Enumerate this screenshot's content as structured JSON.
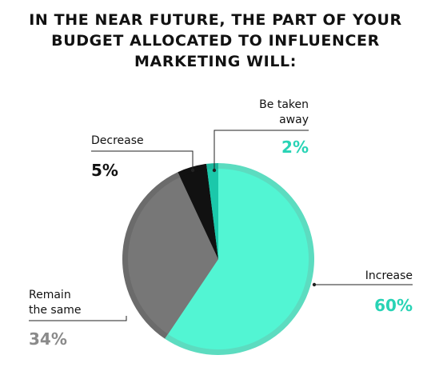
{
  "chart_data": {
    "type": "pie",
    "title_lines": [
      "IN THE NEAR FUTURE, THE PART OF YOUR",
      "BUDGET ALLOCATED TO INFLUENCER",
      "MARKETING WILL:"
    ],
    "slices": [
      {
        "label_lines": [
          "Increase"
        ],
        "value": 60,
        "value_label": "60%",
        "color": "#52f5d3",
        "ring_color": "#5cdcc0",
        "label_color": "#111111",
        "value_color": "#28d3b5"
      },
      {
        "label_lines": [
          "Remain",
          "the same"
        ],
        "value": 34,
        "value_label": "34%",
        "color": "#777777",
        "ring_color": "#6b6b6b",
        "label_color": "#111111",
        "value_color": "#8a8a8a"
      },
      {
        "label_lines": [
          "Decrease"
        ],
        "value": 5,
        "value_label": "5%",
        "color": "#111111",
        "ring_color": "#111111",
        "label_color": "#111111",
        "value_color": "#111111"
      },
      {
        "label_lines": [
          "Be taken",
          "away"
        ],
        "value": 2,
        "value_label": "2%",
        "color": "#1bc8aa",
        "ring_color": "#1bb79c",
        "label_color": "#111111",
        "value_color": "#28d3b5"
      }
    ],
    "start_angle_deg": 0,
    "direction": "clockwise",
    "legend": "none"
  }
}
